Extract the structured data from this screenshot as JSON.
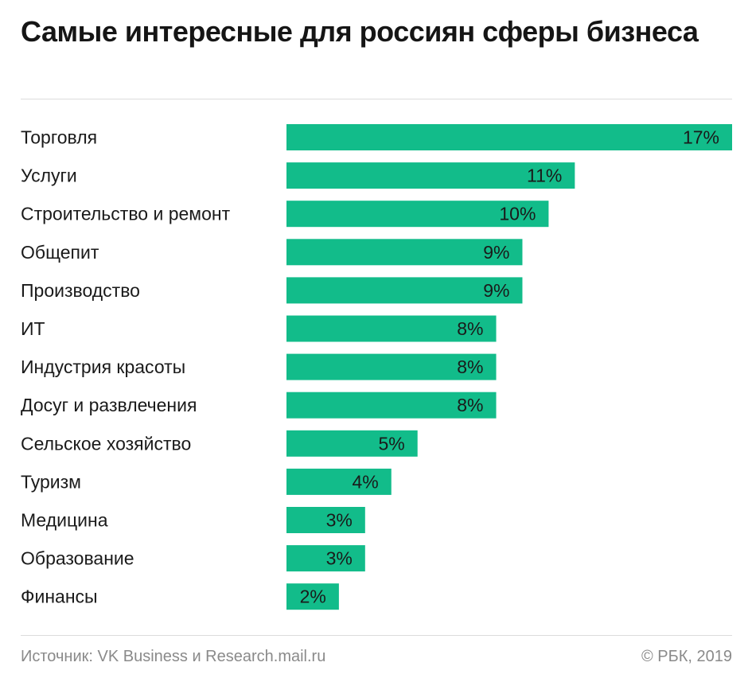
{
  "title": "Самые интересные для россиян сферы бизнеса",
  "source": "Источник: VK Business и Research.mail.ru",
  "credit": "© РБК, 2019",
  "colors": {
    "bar": "#12bc8a",
    "text": "#1a1a1a",
    "muted": "#8a8a8a"
  },
  "chart_data": {
    "type": "bar",
    "orientation": "horizontal",
    "categories": [
      "Торговля",
      "Услуги",
      "Строительство и ремонт",
      "Общепит",
      "Производство",
      "ИТ",
      "Индустрия красоты",
      "Досуг и развлечения",
      "Сельское хозяйство",
      "Туризм",
      "Медицина",
      "Образование",
      "Финансы"
    ],
    "values": [
      17,
      11,
      10,
      9,
      9,
      8,
      8,
      8,
      5,
      4,
      3,
      3,
      2
    ],
    "value_labels": [
      "17%",
      "11%",
      "10%",
      "9%",
      "9%",
      "8%",
      "8%",
      "8%",
      "5%",
      "4%",
      "3%",
      "3%",
      "2%"
    ],
    "unit": "%",
    "xlim": [
      0,
      17
    ],
    "grid": false,
    "legend": "none"
  }
}
